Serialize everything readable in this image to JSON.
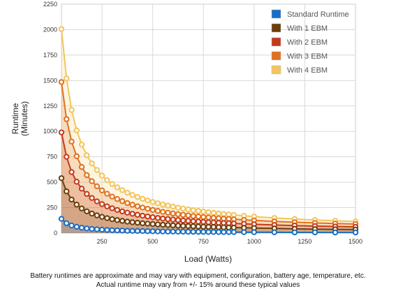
{
  "chart_data": {
    "type": "line",
    "title": "",
    "xlabel": "Load (Watts)",
    "ylabel": "Runtime\n(Minutes)",
    "xlim": [
      50,
      1500
    ],
    "ylim": [
      0,
      2250
    ],
    "x_ticks": [
      250,
      500,
      750,
      1000,
      1250,
      1500
    ],
    "y_ticks": [
      0,
      250,
      500,
      750,
      1000,
      1250,
      1500,
      1750,
      2000,
      2250
    ],
    "grid": true,
    "legend_position": "top-right",
    "x": [
      50,
      75,
      100,
      125,
      150,
      175,
      200,
      225,
      250,
      275,
      300,
      325,
      350,
      375,
      400,
      425,
      450,
      475,
      500,
      525,
      550,
      575,
      600,
      625,
      650,
      675,
      700,
      725,
      750,
      775,
      800,
      825,
      850,
      875,
      900,
      950,
      1000,
      1100,
      1200,
      1300,
      1400,
      1500
    ],
    "series": [
      {
        "name": "Standard Runtime",
        "color": "#1a6fc4",
        "values": [
          140,
          97,
          75,
          62,
          53,
          46,
          41,
          37,
          34,
          31,
          29,
          27,
          25,
          23,
          22,
          21,
          20,
          19,
          18,
          17,
          16,
          15,
          15,
          14,
          14,
          13,
          13,
          12,
          12,
          11,
          11,
          11,
          10,
          10,
          10,
          9,
          9,
          8,
          7,
          7,
          6,
          6
        ]
      },
      {
        "name": "With 1 EBM",
        "color": "#6b3e0c",
        "values": [
          540,
          410,
          330,
          280,
          242,
          214,
          192,
          174,
          160,
          147,
          137,
          128,
          120,
          113,
          107,
          102,
          97,
          93,
          89,
          85,
          82,
          79,
          76,
          73,
          71,
          69,
          67,
          65,
          63,
          61,
          60,
          58,
          57,
          55,
          54,
          52,
          50,
          46,
          42,
          39,
          37,
          35
        ]
      },
      {
        "name": "With 2 EBM",
        "color": "#c23a1c",
        "values": [
          990,
          750,
          600,
          505,
          437,
          385,
          345,
          312,
          285,
          263,
          244,
          228,
          213,
          201,
          190,
          180,
          171,
          163,
          156,
          149,
          143,
          138,
          133,
          128,
          124,
          120,
          116,
          113,
          110,
          107,
          104,
          101,
          99,
          97,
          95,
          91,
          87,
          80,
          74,
          69,
          65,
          61
        ]
      },
      {
        "name": "With 3 EBM",
        "color": "#e0711e",
        "values": [
          1485,
          1120,
          900,
          755,
          650,
          570,
          510,
          460,
          420,
          387,
          359,
          335,
          314,
          295,
          279,
          264,
          251,
          239,
          228,
          218,
          209,
          201,
          193,
          186,
          180,
          174,
          168,
          163,
          158,
          154,
          150,
          146,
          142,
          139,
          136,
          130,
          125,
          115,
          107,
          100,
          94,
          89
        ]
      },
      {
        "name": "With 4 EBM",
        "color": "#f2c55c",
        "values": [
          2005,
          1520,
          1210,
          1010,
          870,
          765,
          685,
          620,
          565,
          520,
          482,
          450,
          422,
          397,
          375,
          355,
          337,
          321,
          306,
          293,
          281,
          270,
          260,
          250,
          241,
          233,
          225,
          218,
          211,
          205,
          199,
          193,
          188,
          183,
          178,
          170,
          162,
          149,
          138,
          129,
          121,
          114
        ]
      }
    ]
  },
  "captions": {
    "line1": "Battery runtimes are approximate and may vary with equipment, configuration, battery age, temperature, etc.",
    "line2": "Actual runtime may vary from +/- 15% around these typical values"
  }
}
